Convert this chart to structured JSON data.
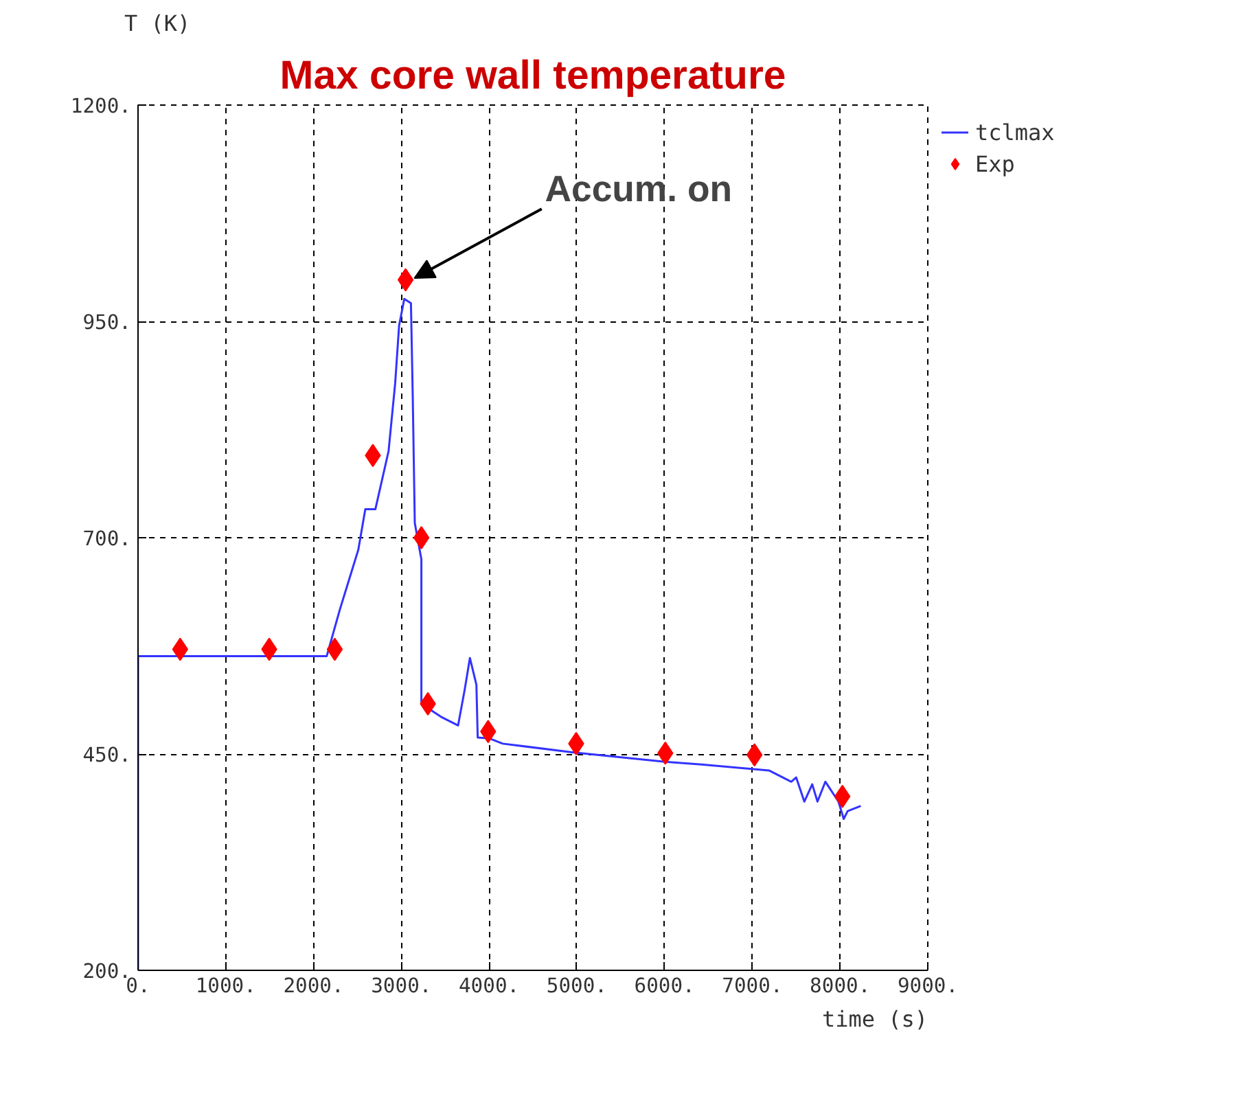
{
  "chart_data": {
    "type": "line",
    "title": "Max core wall temperature",
    "xlabel": "time (s)",
    "ylabel": "T (K)",
    "xlim": [
      0,
      9000
    ],
    "ylim": [
      200,
      1200
    ],
    "xticks": [
      {
        "value": 0,
        "label": "0."
      },
      {
        "value": 1000,
        "label": "1000."
      },
      {
        "value": 2000,
        "label": "2000."
      },
      {
        "value": 3000,
        "label": "3000."
      },
      {
        "value": 4000,
        "label": "4000."
      },
      {
        "value": 5000,
        "label": "5000."
      },
      {
        "value": 6000,
        "label": "6000."
      },
      {
        "value": 7000,
        "label": "7000."
      },
      {
        "value": 8000,
        "label": "8000."
      },
      {
        "value": 9000,
        "label": "9000."
      }
    ],
    "yticks": [
      {
        "value": 200,
        "label": "200."
      },
      {
        "value": 450,
        "label": "450."
      },
      {
        "value": 700,
        "label": "700."
      },
      {
        "value": 950,
        "label": "950."
      },
      {
        "value": 1200,
        "label": "1200."
      }
    ],
    "grid": true,
    "legend": "right",
    "annotations": [
      {
        "text": "Accum. on",
        "x": 3150,
        "y": 1000
      }
    ],
    "series": [
      {
        "name": "tclmax",
        "type": "line",
        "color": "#3333ff",
        "marker": "none",
        "line_style": "solid",
        "x": [
          0,
          0,
          2150,
          2300,
          2510,
          2590,
          2705,
          2855,
          2930,
          2975,
          3034,
          3110,
          3130,
          3154,
          3200,
          3229,
          3229,
          3453,
          3647,
          3722,
          3782,
          3856,
          3871,
          4006,
          4155,
          4948,
          6000,
          6400,
          7190,
          7444,
          7500,
          7593,
          7683,
          7743,
          7833,
          7982,
          8042,
          8087,
          8236
        ],
        "values": [
          200,
          563,
          563,
          617,
          686,
          733,
          733,
          800,
          878,
          945,
          976,
          971,
          867,
          717,
          691,
          675,
          508,
          493,
          483,
          524,
          561,
          530,
          469,
          468,
          462,
          452,
          441,
          438,
          431,
          418,
          423,
          395,
          415,
          395,
          418,
          395,
          375,
          384,
          390
        ]
      },
      {
        "name": "Exp",
        "type": "scatter",
        "color": "#ff0000",
        "marker": "diamond",
        "x": [
          480,
          1495,
          2242,
          2676,
          3049,
          3229,
          3303,
          3990,
          4993,
          6009,
          7025,
          8027
        ],
        "values": [
          571,
          571,
          571,
          795,
          998,
          700,
          508,
          476,
          462,
          451,
          449,
          401
        ]
      }
    ]
  }
}
